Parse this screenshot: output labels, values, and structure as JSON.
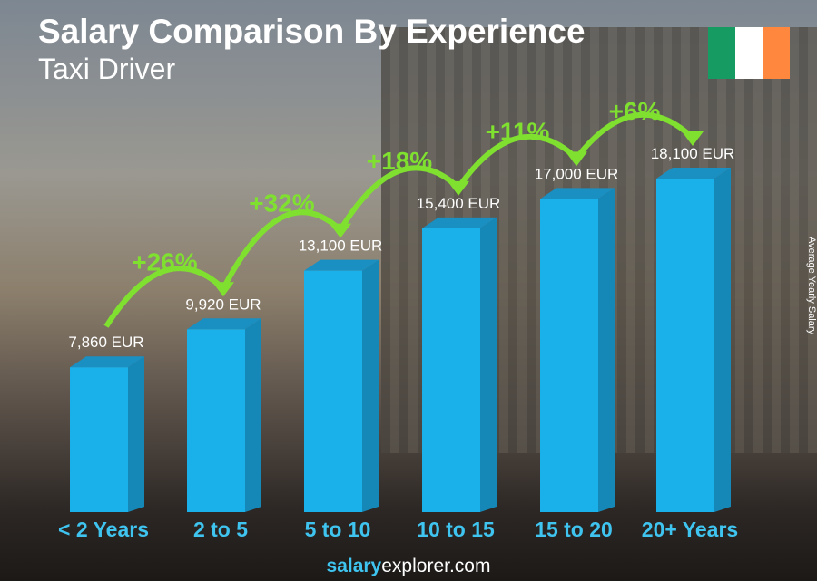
{
  "header": {
    "title": "Salary Comparison By Experience",
    "subtitle": "Taxi Driver"
  },
  "flag": {
    "colors": [
      "#169b62",
      "#ffffff",
      "#ff883e"
    ],
    "country": "Ireland"
  },
  "footer": {
    "brand_bold": "salary",
    "brand_rest": "explorer",
    "brand_tld": ".com"
  },
  "chart_data": {
    "type": "bar",
    "title": "Salary Comparison By Experience",
    "subtitle": "Taxi Driver",
    "ylabel": "Average Yearly Salary",
    "categories": [
      "< 2 Years",
      "2 to 5",
      "5 to 10",
      "10 to 15",
      "15 to 20",
      "20+ Years"
    ],
    "values": [
      7860,
      9920,
      13100,
      15400,
      17000,
      18100
    ],
    "value_labels": [
      "7,860 EUR",
      "9,920 EUR",
      "13,100 EUR",
      "15,400 EUR",
      "17,000 EUR",
      "18,100 EUR"
    ],
    "increases": [
      "+26%",
      "+32%",
      "+18%",
      "+11%",
      "+6%"
    ],
    "unit": "EUR",
    "colors": {
      "bar": "#1ab0ea",
      "bar_side": "#1588b8",
      "bar_top": "#1a8fc2",
      "increase": "#7fe030",
      "category": "#3fc4f0"
    }
  }
}
